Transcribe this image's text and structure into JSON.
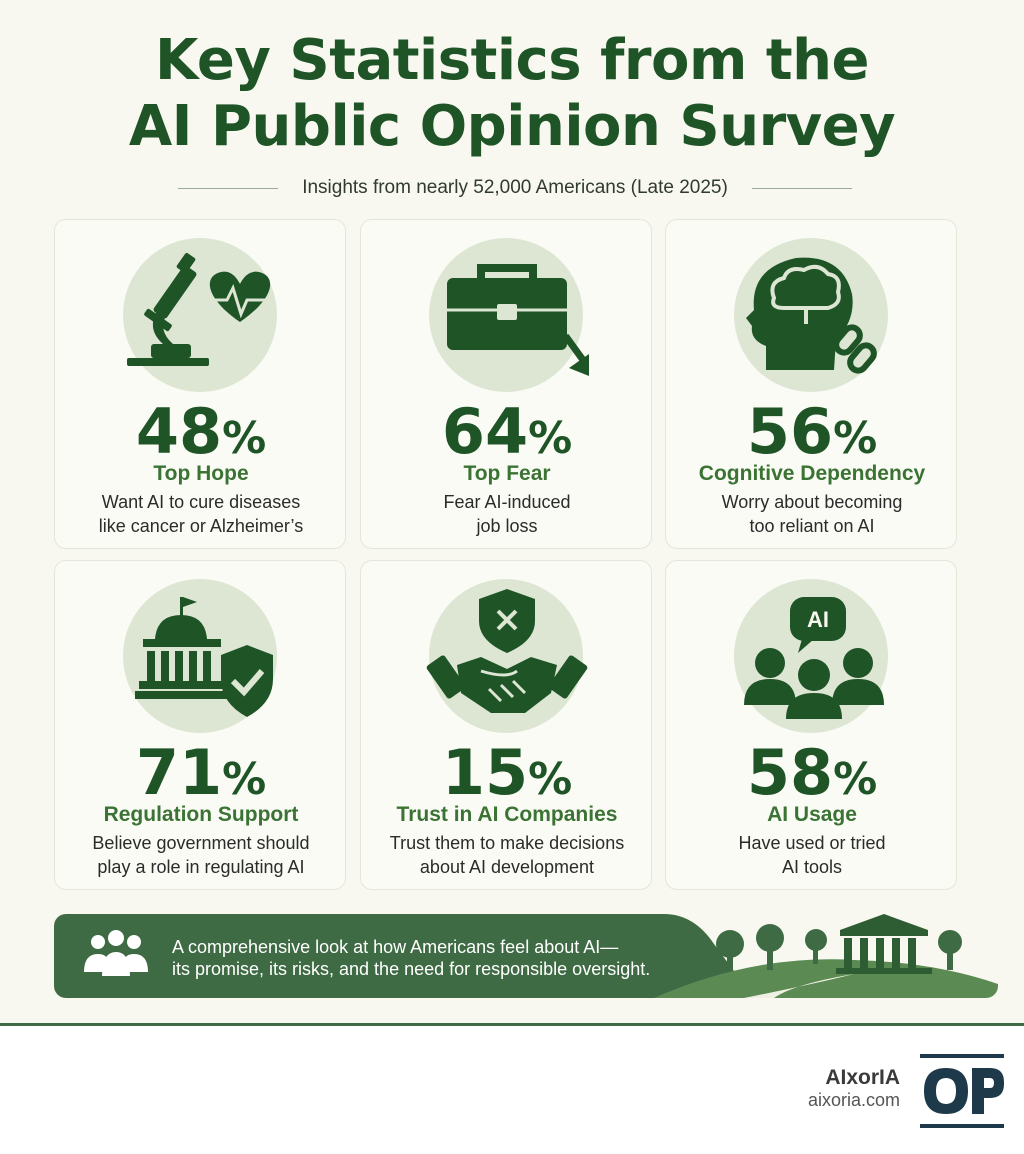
{
  "header": {
    "title_line1": "Key Statistics from the",
    "title_line2": "AI Public Opinion Survey",
    "subtitle": "Insights from nearly 52,000 Americans (Late 2025)"
  },
  "stats": [
    {
      "percent": "48",
      "sign": "%",
      "label": "Top Hope",
      "desc_line1": "Want AI to cure diseases",
      "desc_line2": "like cancer or Alzheimer’s",
      "icon": "microscope-heart-icon"
    },
    {
      "percent": "64",
      "sign": "%",
      "label": "Top Fear",
      "desc_line1": "Fear AI-induced",
      "desc_line2": "job loss",
      "icon": "briefcase-decline-icon"
    },
    {
      "percent": "56",
      "sign": "%",
      "label": "Cognitive Dependency",
      "desc_line1": "Worry about becoming",
      "desc_line2": "too reliant on AI",
      "icon": "head-brain-chain-icon"
    },
    {
      "percent": "71",
      "sign": "%",
      "label": "Regulation Support",
      "desc_line1": "Believe government should",
      "desc_line2": "play a role in regulating AI",
      "icon": "capitol-shield-icon"
    },
    {
      "percent": "15",
      "sign": "%",
      "label": "Trust in AI Companies",
      "desc_line1": "Trust them to make decisions",
      "desc_line2": "about AI development",
      "icon": "handshake-shield-icon"
    },
    {
      "percent": "58",
      "sign": "%",
      "label": "AI Usage",
      "desc_line1": "Have used or tried",
      "desc_line2": "AI tools",
      "icon": "people-ai-bubble-icon",
      "bubble_text": "AI"
    }
  ],
  "banner": {
    "line1": "A comprehensive look at how Americans feel about AI—",
    "line2": "its promise, its risks, and the need for responsible oversight.",
    "icon": "people-group-icon",
    "illustration": "trees-government-building"
  },
  "footer": {
    "brand_name": "AIxorIA",
    "brand_url": "aixoria.com",
    "logo": "aixoria-logo"
  },
  "colors": {
    "primary_green": "#1f5427",
    "label_green": "#3a7333",
    "icon_circle": "#dde6d3",
    "background": "#f8f8f0",
    "banner_green": "#3e6b43"
  }
}
